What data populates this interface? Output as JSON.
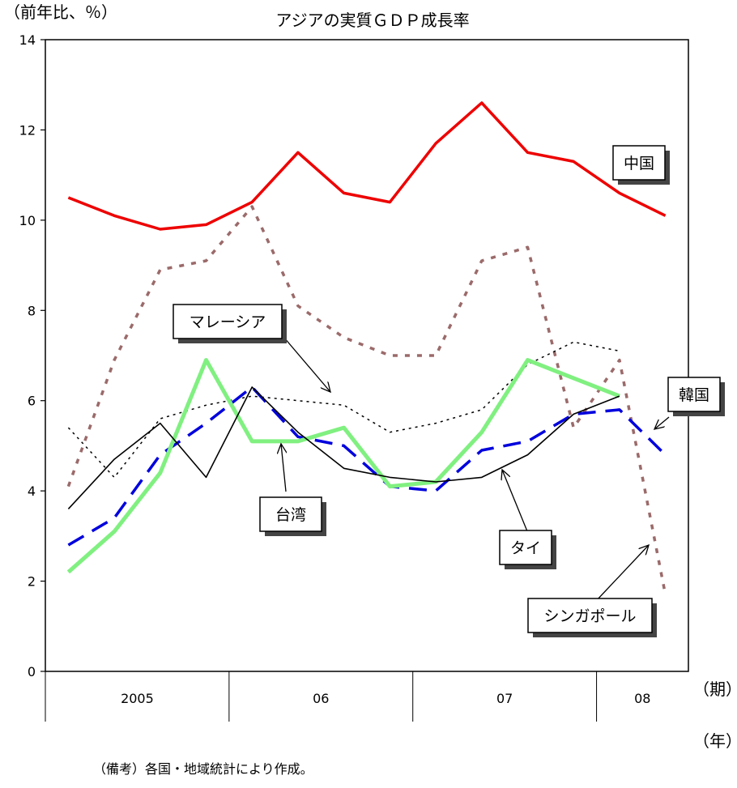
{
  "chart_data": {
    "type": "line",
    "title": "アジアの実質ＧＤＰ成長率",
    "ylabel": "（前年比、％）",
    "x_unit_period": "（期）",
    "x_unit_year": "（年）",
    "ylim": [
      0,
      14
    ],
    "yticks": [
      0,
      2,
      4,
      6,
      8,
      10,
      12,
      14
    ],
    "quarters": 14,
    "years": [
      {
        "label": "2005",
        "quarters": 4
      },
      {
        "label": "06",
        "quarters": 4
      },
      {
        "label": "07",
        "quarters": 4
      },
      {
        "label": "08",
        "quarters": 2
      }
    ],
    "grid": false,
    "series": [
      {
        "name": "中国",
        "color": "#ee0000",
        "style": "solid",
        "width": 3.5,
        "values": [
          10.5,
          10.1,
          9.8,
          9.9,
          10.4,
          11.5,
          10.6,
          10.4,
          11.7,
          12.6,
          11.5,
          11.3,
          10.6,
          10.1
        ]
      },
      {
        "name": "シンガポール",
        "color": "#9b6a6a",
        "style": "shortdash",
        "width": 3.5,
        "values": [
          4.1,
          6.9,
          8.9,
          9.1,
          10.3,
          8.1,
          7.4,
          7.0,
          7.0,
          9.1,
          9.4,
          5.4,
          6.9,
          1.7
        ]
      },
      {
        "name": "マレーシア",
        "color": "#000000",
        "style": "dot",
        "width": 1.5,
        "values": [
          5.4,
          4.3,
          5.6,
          5.9,
          6.1,
          6.0,
          5.9,
          5.3,
          5.5,
          5.8,
          6.8,
          7.3,
          7.1,
          null
        ]
      },
      {
        "name": "韓国",
        "color": "#0000dd",
        "style": "longdash",
        "width": 3.5,
        "values": [
          2.8,
          3.4,
          4.8,
          5.5,
          6.3,
          5.2,
          5.0,
          4.1,
          4.0,
          4.9,
          5.1,
          5.7,
          5.8,
          4.8
        ]
      },
      {
        "name": "台湾",
        "color": "#80f080",
        "style": "solid",
        "width": 5,
        "values": [
          2.2,
          3.1,
          4.4,
          6.9,
          5.1,
          5.1,
          5.4,
          4.1,
          4.2,
          5.3,
          6.9,
          6.5,
          6.1,
          null
        ]
      },
      {
        "name": "タイ",
        "color": "#000000",
        "style": "solid",
        "width": 1.6,
        "values": [
          3.6,
          4.7,
          5.5,
          4.3,
          6.3,
          5.3,
          4.5,
          4.3,
          4.2,
          4.3,
          4.8,
          5.7,
          6.1,
          null
        ]
      }
    ],
    "annotations": {
      "china": "中国",
      "malaysia": "マレーシア",
      "korea": "韓国",
      "taiwan": "台湾",
      "thai": "タイ",
      "singapore": "シンガポール"
    }
  },
  "note": "（備考）各国・地域統計により作成。"
}
